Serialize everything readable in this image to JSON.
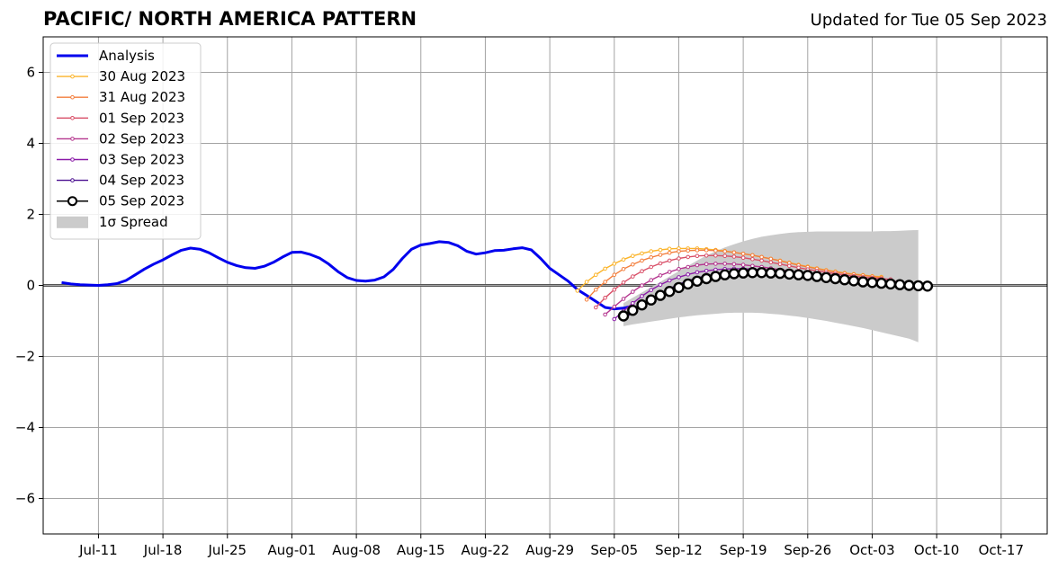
{
  "header": {
    "title": "PACIFIC/ NORTH AMERICA PATTERN",
    "updated": "Updated for Tue 05 Sep 2023"
  },
  "chart_data": {
    "type": "line",
    "title": "PACIFIC/ NORTH AMERICA PATTERN",
    "xlabel": "",
    "ylabel": "",
    "xlim": [
      "2023-07-05",
      "2023-10-22"
    ],
    "ylim": [
      -7,
      7
    ],
    "grid": true,
    "legend_position": "top-left",
    "x_ticks": [
      "2023-07-11",
      "2023-07-18",
      "2023-07-25",
      "2023-08-01",
      "2023-08-08",
      "2023-08-15",
      "2023-08-22",
      "2023-08-29",
      "2023-09-05",
      "2023-09-12",
      "2023-09-19",
      "2023-09-26",
      "2023-10-03",
      "2023-10-10",
      "2023-10-17"
    ],
    "x_tick_labels": [
      "Jul-11",
      "Jul-18",
      "Jul-25",
      "Aug-01",
      "Aug-08",
      "Aug-15",
      "Aug-22",
      "Aug-29",
      "Sep-05",
      "Sep-12",
      "Sep-19",
      "Sep-26",
      "Oct-03",
      "Oct-10",
      "Oct-17"
    ],
    "y_ticks": [
      6,
      4,
      2,
      0,
      -2,
      -4,
      -6
    ],
    "y_tick_labels": [
      "6",
      "4",
      "2",
      "0",
      "−2",
      "−4",
      "−6"
    ],
    "analysis": {
      "name": "Analysis",
      "color": "#0000ee",
      "points": [
        [
          "2023-07-07",
          0.08
        ],
        [
          "2023-07-08",
          0.04
        ],
        [
          "2023-07-09",
          0.02
        ],
        [
          "2023-07-10",
          0.01
        ],
        [
          "2023-07-11",
          0.0
        ],
        [
          "2023-07-12",
          0.02
        ],
        [
          "2023-07-13",
          0.05
        ],
        [
          "2023-07-14",
          0.14
        ],
        [
          "2023-07-15",
          0.3
        ],
        [
          "2023-07-16",
          0.46
        ],
        [
          "2023-07-17",
          0.6
        ],
        [
          "2023-07-18",
          0.72
        ],
        [
          "2023-07-19",
          0.86
        ],
        [
          "2023-07-20",
          0.99
        ],
        [
          "2023-07-21",
          1.05
        ],
        [
          "2023-07-22",
          1.02
        ],
        [
          "2023-07-23",
          0.92
        ],
        [
          "2023-07-24",
          0.78
        ],
        [
          "2023-07-25",
          0.65
        ],
        [
          "2023-07-26",
          0.56
        ],
        [
          "2023-07-27",
          0.5
        ],
        [
          "2023-07-28",
          0.48
        ],
        [
          "2023-07-29",
          0.54
        ],
        [
          "2023-07-30",
          0.65
        ],
        [
          "2023-07-31",
          0.8
        ],
        [
          "2023-08-01",
          0.93
        ],
        [
          "2023-08-02",
          0.94
        ],
        [
          "2023-08-03",
          0.87
        ],
        [
          "2023-08-04",
          0.77
        ],
        [
          "2023-08-05",
          0.6
        ],
        [
          "2023-08-06",
          0.39
        ],
        [
          "2023-08-07",
          0.22
        ],
        [
          "2023-08-08",
          0.14
        ],
        [
          "2023-08-09",
          0.12
        ],
        [
          "2023-08-10",
          0.15
        ],
        [
          "2023-08-11",
          0.24
        ],
        [
          "2023-08-12",
          0.45
        ],
        [
          "2023-08-13",
          0.76
        ],
        [
          "2023-08-14",
          1.02
        ],
        [
          "2023-08-15",
          1.14
        ],
        [
          "2023-08-16",
          1.18
        ],
        [
          "2023-08-17",
          1.23
        ],
        [
          "2023-08-18",
          1.21
        ],
        [
          "2023-08-19",
          1.12
        ],
        [
          "2023-08-20",
          0.96
        ],
        [
          "2023-08-21",
          0.88
        ],
        [
          "2023-08-22",
          0.92
        ],
        [
          "2023-08-23",
          0.98
        ],
        [
          "2023-08-24",
          0.99
        ],
        [
          "2023-08-25",
          1.03
        ],
        [
          "2023-08-26",
          1.06
        ],
        [
          "2023-08-27",
          1.0
        ],
        [
          "2023-08-28",
          0.76
        ],
        [
          "2023-08-29",
          0.48
        ],
        [
          "2023-08-30",
          0.3
        ],
        [
          "2023-08-31",
          0.12
        ],
        [
          "2023-09-01",
          -0.12
        ],
        [
          "2023-09-02",
          -0.28
        ],
        [
          "2023-09-03",
          -0.45
        ],
        [
          "2023-09-04",
          -0.62
        ],
        [
          "2023-09-05",
          -0.66
        ],
        [
          "2023-09-06",
          -0.64
        ],
        [
          "2023-09-07",
          -0.58
        ]
      ]
    },
    "series": [
      {
        "name": "30 Aug 2023",
        "color": "#fbb42a",
        "start": "2023-09-01",
        "values": [
          -0.15,
          0.1,
          0.3,
          0.47,
          0.61,
          0.73,
          0.83,
          0.9,
          0.96,
          1.0,
          1.03,
          1.04,
          1.04,
          1.04,
          1.02,
          1.0,
          0.97,
          0.93,
          0.89,
          0.85,
          0.8,
          0.75,
          0.7,
          0.64,
          0.58,
          0.53,
          0.48,
          0.43,
          0.39,
          0.35,
          0.32,
          0.29,
          0.26,
          0.24
        ]
      },
      {
        "name": "31 Aug 2023",
        "color": "#f37e3c",
        "start": "2023-09-02",
        "values": [
          -0.4,
          -0.12,
          0.1,
          0.3,
          0.46,
          0.59,
          0.7,
          0.79,
          0.86,
          0.92,
          0.96,
          0.98,
          0.99,
          0.99,
          0.98,
          0.96,
          0.93,
          0.89,
          0.85,
          0.8,
          0.75,
          0.69,
          0.63,
          0.57,
          0.52,
          0.47,
          0.42,
          0.38,
          0.34,
          0.31,
          0.28,
          0.25,
          0.22
        ]
      },
      {
        "name": "01 Sep 2023",
        "color": "#d94f68",
        "start": "2023-09-03",
        "values": [
          -0.62,
          -0.35,
          -0.12,
          0.08,
          0.25,
          0.4,
          0.52,
          0.62,
          0.7,
          0.76,
          0.8,
          0.83,
          0.84,
          0.84,
          0.83,
          0.81,
          0.78,
          0.74,
          0.7,
          0.65,
          0.6,
          0.55,
          0.5,
          0.45,
          0.41,
          0.37,
          0.33,
          0.29,
          0.26,
          0.23,
          0.21,
          0.19,
          0.17
        ]
      },
      {
        "name": "02 Sep 2023",
        "color": "#b4358e",
        "start": "2023-09-04",
        "values": [
          -0.82,
          -0.6,
          -0.38,
          -0.18,
          0.0,
          0.15,
          0.28,
          0.38,
          0.46,
          0.52,
          0.57,
          0.6,
          0.61,
          0.61,
          0.6,
          0.58,
          0.55,
          0.52,
          0.48,
          0.44,
          0.4,
          0.37,
          0.33,
          0.3,
          0.27,
          0.24,
          0.21,
          0.19,
          0.17,
          0.15,
          0.13,
          0.12,
          0.11
        ]
      },
      {
        "name": "03 Sep 2023",
        "color": "#8a1aa8",
        "start": "2023-09-05",
        "values": [
          -0.95,
          -0.72,
          -0.5,
          -0.3,
          -0.13,
          0.02,
          0.14,
          0.23,
          0.31,
          0.37,
          0.41,
          0.44,
          0.46,
          0.47,
          0.47,
          0.46,
          0.44,
          0.42,
          0.39,
          0.36,
          0.33,
          0.3,
          0.27,
          0.24,
          0.21,
          0.19,
          0.17,
          0.15,
          0.13,
          0.11,
          0.1,
          0.09,
          0.08
        ]
      },
      {
        "name": "04 Sep 2023",
        "color": "#4b1090",
        "start": "2023-09-06",
        "values": [
          -0.95,
          -0.76,
          -0.57,
          -0.39,
          -0.23,
          -0.09,
          0.03,
          0.13,
          0.21,
          0.27,
          0.31,
          0.34,
          0.36,
          0.37,
          0.37,
          0.36,
          0.34,
          0.32,
          0.29,
          0.27,
          0.24,
          0.21,
          0.18,
          0.16,
          0.13,
          0.11,
          0.09,
          0.07,
          0.05,
          0.04,
          0.03,
          0.02,
          0.01
        ]
      },
      {
        "name": "05 Sep 2023",
        "color": "#000000",
        "start": "2023-09-06",
        "marker": "open-circle",
        "values": [
          -0.86,
          -0.7,
          -0.55,
          -0.41,
          -0.28,
          -0.17,
          -0.06,
          0.04,
          0.12,
          0.19,
          0.25,
          0.3,
          0.33,
          0.35,
          0.36,
          0.36,
          0.35,
          0.34,
          0.32,
          0.3,
          0.28,
          0.25,
          0.22,
          0.19,
          0.16,
          0.13,
          0.1,
          0.08,
          0.06,
          0.04,
          0.02,
          0.0,
          -0.01,
          -0.02
        ]
      }
    ],
    "spread": {
      "name": "1σ Spread",
      "color": "#cbcbcb",
      "start": "2023-09-06",
      "end": "2023-10-08",
      "upper": [
        -0.5,
        -0.35,
        -0.2,
        -0.05,
        0.1,
        0.25,
        0.4,
        0.55,
        0.7,
        0.84,
        0.96,
        1.07,
        1.16,
        1.24,
        1.31,
        1.37,
        1.41,
        1.45,
        1.48,
        1.5,
        1.51,
        1.52,
        1.52,
        1.52,
        1.52,
        1.52,
        1.52,
        1.52,
        1.53,
        1.53,
        1.54,
        1.55,
        1.56
      ],
      "lower": [
        -1.15,
        -1.1,
        -1.06,
        -1.02,
        -0.98,
        -0.94,
        -0.9,
        -0.87,
        -0.84,
        -0.82,
        -0.8,
        -0.78,
        -0.77,
        -0.77,
        -0.77,
        -0.78,
        -0.8,
        -0.82,
        -0.85,
        -0.88,
        -0.92,
        -0.96,
        -1.0,
        -1.05,
        -1.1,
        -1.15,
        -1.2,
        -1.26,
        -1.32,
        -1.38,
        -1.44,
        -1.5,
        -1.6
      ]
    },
    "legend": [
      {
        "label": "Analysis",
        "kind": "thick-line",
        "color": "#0000ee"
      },
      {
        "label": "30 Aug 2023",
        "kind": "dot-line",
        "color": "#fbb42a"
      },
      {
        "label": "31 Aug 2023",
        "kind": "dot-line",
        "color": "#f37e3c"
      },
      {
        "label": "01 Sep 2023",
        "kind": "dot-line",
        "color": "#d94f68"
      },
      {
        "label": "02 Sep 2023",
        "kind": "dot-line",
        "color": "#b4358e"
      },
      {
        "label": "03 Sep 2023",
        "kind": "dot-line",
        "color": "#8a1aa8"
      },
      {
        "label": "04 Sep 2023",
        "kind": "dot-line",
        "color": "#4b1090"
      },
      {
        "label": "05 Sep 2023",
        "kind": "circle-line",
        "color": "#000000"
      },
      {
        "label": "1σ Spread",
        "kind": "patch",
        "color": "#cbcbcb"
      }
    ]
  }
}
